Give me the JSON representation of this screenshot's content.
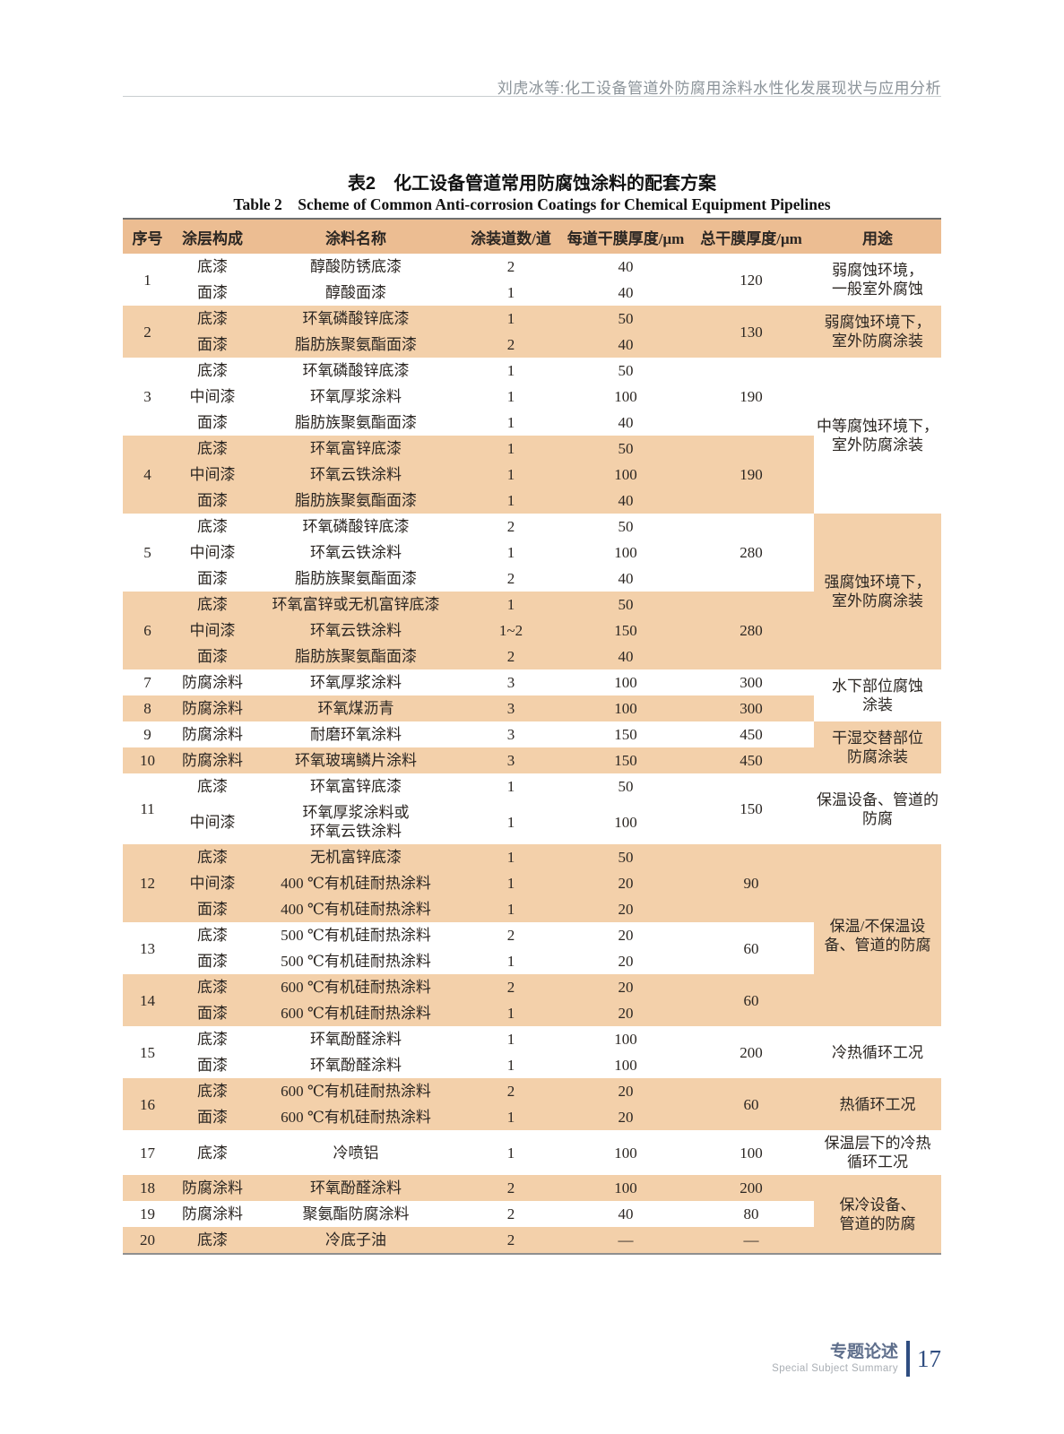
{
  "page": {
    "running_header": "刘虎冰等:化工设备管道外防腐用涂料水性化发展现状与应用分析",
    "footer": {
      "section_zh": "专题论述",
      "section_en": "Special Subject Summary",
      "page_number": "17"
    },
    "colors": {
      "table_header_bg": "#ecbd92",
      "band_bg": "#f3d0aa",
      "accent_blue": "#2f4d80",
      "header_text_gray": "#8b9399"
    }
  },
  "table": {
    "title_zh": "表2　化工设备管道常用防腐蚀涂料的配套方案",
    "title_en": "Table 2 Scheme of Common Anti-corrosion Coatings for Chemical Equipment Pipelines",
    "columns": [
      "序号",
      "涂层构成",
      "涂料名称",
      "涂装道数/道",
      "每道干膜厚度/μm",
      "总干膜厚度/μm",
      "用途"
    ],
    "groups": [
      {
        "no": "1",
        "total": "120",
        "rows": [
          [
            "底漆",
            "醇酸防锈底漆",
            "2",
            "40"
          ],
          [
            "面漆",
            "醇酸面漆",
            "1",
            "40"
          ]
        ],
        "use": {
          "text": "弱腐蚀环境，\n一般室外腐蚀",
          "rows": 2,
          "shaded": false
        }
      },
      {
        "no": "2",
        "total": "130",
        "rows": [
          [
            "底漆",
            "环氧磷酸锌底漆",
            "1",
            "50"
          ],
          [
            "面漆",
            "脂肪族聚氨酯面漆",
            "2",
            "40"
          ]
        ],
        "use": {
          "text": "弱腐蚀环境下，\n室外防腐涂装",
          "rows": 2,
          "shaded": true
        }
      },
      {
        "no": "3",
        "total": "190",
        "rows": [
          [
            "底漆",
            "环氧磷酸锌底漆",
            "1",
            "50"
          ],
          [
            "中间漆",
            "环氧厚浆涂料",
            "1",
            "100"
          ],
          [
            "面漆",
            "脂肪族聚氨酯面漆",
            "1",
            "40"
          ]
        ],
        "use": {
          "text": "中等腐蚀环境下，\n室外防腐涂装",
          "rows": 6,
          "shaded": false
        }
      },
      {
        "no": "4",
        "total": "190",
        "rows": [
          [
            "底漆",
            "环氧富锌底漆",
            "1",
            "50"
          ],
          [
            "中间漆",
            "环氧云铁涂料",
            "1",
            "100"
          ],
          [
            "面漆",
            "脂肪族聚氨酯面漆",
            "1",
            "40"
          ]
        ]
      },
      {
        "no": "5",
        "total": "280",
        "rows": [
          [
            "底漆",
            "环氧磷酸锌底漆",
            "2",
            "50"
          ],
          [
            "中间漆",
            "环氧云铁涂料",
            "1",
            "100"
          ],
          [
            "面漆",
            "脂肪族聚氨酯面漆",
            "2",
            "40"
          ]
        ],
        "use": {
          "text": "强腐蚀环境下，\n室外防腐涂装",
          "rows": 6,
          "shaded": true
        }
      },
      {
        "no": "6",
        "total": "280",
        "rows": [
          [
            "底漆",
            "环氧富锌或无机富锌底漆",
            "1",
            "50"
          ],
          [
            "中间漆",
            "环氧云铁涂料",
            "1~2",
            "150"
          ],
          [
            "面漆",
            "脂肪族聚氨酯面漆",
            "2",
            "40"
          ]
        ]
      },
      {
        "no": "7",
        "total": "300",
        "rows": [
          [
            "防腐涂料",
            "环氧厚浆涂料",
            "3",
            "100"
          ]
        ],
        "use": {
          "text": "水下部位腐蚀\n涂装",
          "rows": 2,
          "shaded": false
        }
      },
      {
        "no": "8",
        "total": "300",
        "rows": [
          [
            "防腐涂料",
            "环氧煤沥青",
            "3",
            "100"
          ]
        ]
      },
      {
        "no": "9",
        "total": "450",
        "rows": [
          [
            "防腐涂料",
            "耐磨环氧涂料",
            "3",
            "150"
          ]
        ],
        "use": {
          "text": "干湿交替部位\n防腐涂装",
          "rows": 2,
          "shaded": true
        }
      },
      {
        "no": "10",
        "total": "450",
        "rows": [
          [
            "防腐涂料",
            "环氧玻璃鳞片涂料",
            "3",
            "150"
          ]
        ]
      },
      {
        "no": "11",
        "total": "150",
        "rows": [
          [
            "底漆",
            "环氧富锌底漆",
            "1",
            "50"
          ],
          [
            "中间漆",
            "环氧厚浆涂料或\n环氧云铁涂料",
            "1",
            "100"
          ]
        ],
        "use": {
          "text": "保温设备、管道的\n防腐",
          "rows": 2,
          "shaded": false
        }
      },
      {
        "no": "12",
        "total": "90",
        "rows": [
          [
            "底漆",
            "无机富锌底漆",
            "1",
            "50"
          ],
          [
            "中间漆",
            "400 ℃有机硅耐热涂料",
            "1",
            "20"
          ],
          [
            "面漆",
            "400 ℃有机硅耐热涂料",
            "1",
            "20"
          ]
        ],
        "use": {
          "text": "保温/不保温设\n备、管道的防腐",
          "rows": 7,
          "shaded": true
        }
      },
      {
        "no": "13",
        "total": "60",
        "rows": [
          [
            "底漆",
            "500 ℃有机硅耐热涂料",
            "2",
            "20"
          ],
          [
            "面漆",
            "500 ℃有机硅耐热涂料",
            "1",
            "20"
          ]
        ]
      },
      {
        "no": "14",
        "total": "60",
        "rows": [
          [
            "底漆",
            "600 ℃有机硅耐热涂料",
            "2",
            "20"
          ],
          [
            "面漆",
            "600 ℃有机硅耐热涂料",
            "1",
            "20"
          ]
        ]
      },
      {
        "no": "15",
        "total": "200",
        "rows": [
          [
            "底漆",
            "环氧酚醛涂料",
            "1",
            "100"
          ],
          [
            "面漆",
            "环氧酚醛涂料",
            "1",
            "100"
          ]
        ],
        "use": {
          "text": "冷热循环工况",
          "rows": 2,
          "shaded": false
        }
      },
      {
        "no": "16",
        "total": "60",
        "rows": [
          [
            "底漆",
            "600 ℃有机硅耐热涂料",
            "2",
            "20"
          ],
          [
            "面漆",
            "600 ℃有机硅耐热涂料",
            "1",
            "20"
          ]
        ],
        "use": {
          "text": "热循环工况",
          "rows": 2,
          "shaded": true
        }
      },
      {
        "no": "17",
        "total": "100",
        "rows": [
          [
            "底漆",
            "冷喷铝",
            "1",
            "100"
          ]
        ],
        "use": {
          "text": "保温层下的冷热\n循环工况",
          "rows": 1,
          "shaded": false
        }
      },
      {
        "no": "18",
        "total": "200",
        "rows": [
          [
            "防腐涂料",
            "环氧酚醛涂料",
            "2",
            "100"
          ]
        ],
        "use": {
          "text": "保冷设备、\n管道的防腐",
          "rows": 3,
          "shaded": true
        }
      },
      {
        "no": "19",
        "total": "80",
        "rows": [
          [
            "防腐涂料",
            "聚氨酯防腐涂料",
            "2",
            "40"
          ]
        ]
      },
      {
        "no": "20",
        "total": "—",
        "rows": [
          [
            "底漆",
            "冷底子油",
            "2",
            "—"
          ]
        ]
      }
    ]
  }
}
